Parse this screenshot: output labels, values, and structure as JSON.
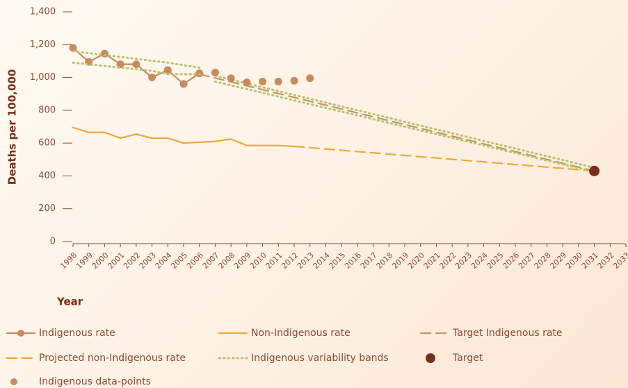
{
  "chart_data": {
    "type": "line",
    "y_label": "Deaths per 100,000",
    "x_label": "Year",
    "ylim": [
      0,
      1400
    ],
    "yticks": [
      0,
      200,
      400,
      600,
      800,
      {
        "value": 1000,
        "label": "1,000"
      },
      {
        "value": 1200,
        "label": "1,200"
      },
      {
        "value": 1400,
        "label": "1,400"
      }
    ],
    "xlim": [
      1998,
      2033
    ],
    "xticks": [
      1998,
      1999,
      2000,
      2001,
      2002,
      2003,
      2004,
      2005,
      2006,
      2007,
      2008,
      2009,
      2010,
      2011,
      2012,
      2013,
      2014,
      2015,
      2016,
      2017,
      2018,
      2019,
      2020,
      2021,
      2022,
      2023,
      2024,
      2025,
      2026,
      2027,
      2028,
      2029,
      2030,
      2031,
      2032,
      2033
    ],
    "series": [
      {
        "name": "Indigenous rate",
        "style": "line-marker",
        "color": "#c98a5e",
        "x": [
          1998,
          1999,
          2000,
          2001,
          2002,
          2003,
          2004,
          2005,
          2006
        ],
        "values": [
          1180,
          1095,
          1145,
          1080,
          1080,
          1000,
          1045,
          960,
          1025
        ]
      },
      {
        "name": "Non-Indigenous rate",
        "style": "solid",
        "color": "#f2a737",
        "x": [
          1998,
          1999,
          2000,
          2001,
          2002,
          2003,
          2004,
          2005,
          2006,
          2007,
          2008,
          2009,
          2010,
          2011,
          2012
        ],
        "values": [
          695,
          665,
          665,
          630,
          655,
          630,
          630,
          600,
          605,
          610,
          625,
          585,
          585,
          585,
          580
        ]
      },
      {
        "name": "Target Indigenous rate",
        "style": "dashed",
        "color": "#c4926c",
        "x": [
          2006,
          2031
        ],
        "values": [
          1020,
          430
        ]
      },
      {
        "name": "Projected non-Indigenous rate",
        "style": "dashed",
        "color": "#f2a737",
        "x": [
          2012,
          2031
        ],
        "values": [
          580,
          430
        ]
      },
      {
        "name": "Indigenous variability bands",
        "style": "dotted",
        "color": "#b6c46a",
        "x": [
          1998,
          2004,
          2006,
          null,
          2007,
          2031,
          null,
          1998,
          2003,
          2004,
          2006,
          null,
          2007,
          2031
        ],
        "values": [
          1160,
          1090,
          1060,
          null,
          1010,
          450,
          null,
          1090,
          1040,
          1020,
          1020,
          null,
          975,
          425
        ]
      },
      {
        "name": "Target",
        "style": "big-point",
        "color": "#7b2e1c",
        "x": [
          2031
        ],
        "values": [
          430
        ]
      },
      {
        "name": "Indigenous data-points",
        "style": "point",
        "color": "#c98a5e",
        "x": [
          2007,
          2008,
          2009,
          2010,
          2011,
          2012,
          2013
        ],
        "values": [
          1030,
          995,
          970,
          975,
          975,
          980,
          995
        ]
      }
    ]
  }
}
